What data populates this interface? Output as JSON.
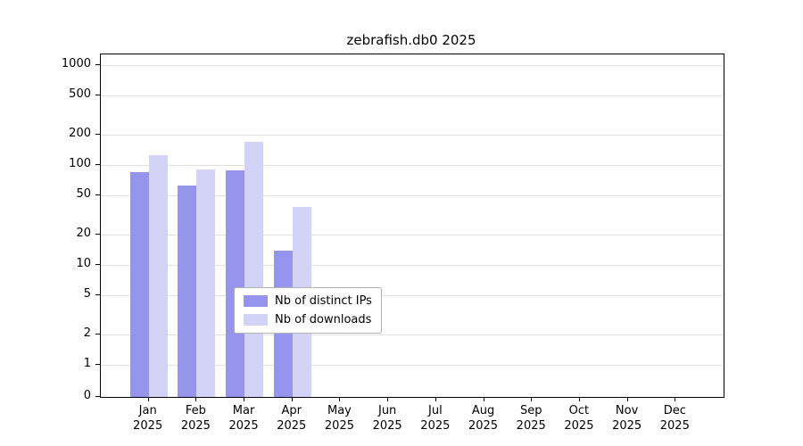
{
  "title": "zebrafish.db0 2025",
  "chart_data": {
    "type": "bar",
    "title": "zebrafish.db0 2025",
    "xlabel": "",
    "ylabel": "",
    "yscale": "symlog",
    "grid": "horizontal",
    "yticks": [
      0,
      1,
      2,
      5,
      10,
      20,
      50,
      100,
      200,
      500,
      1000
    ],
    "ylim": [
      0,
      1300
    ],
    "legend_position": "lower center-left inside plot",
    "categories": [
      {
        "month": "Jan",
        "year": "2025"
      },
      {
        "month": "Feb",
        "year": "2025"
      },
      {
        "month": "Mar",
        "year": "2025"
      },
      {
        "month": "Apr",
        "year": "2025"
      },
      {
        "month": "May",
        "year": "2025"
      },
      {
        "month": "Jun",
        "year": "2025"
      },
      {
        "month": "Jul",
        "year": "2025"
      },
      {
        "month": "Aug",
        "year": "2025"
      },
      {
        "month": "Sep",
        "year": "2025"
      },
      {
        "month": "Oct",
        "year": "2025"
      },
      {
        "month": "Nov",
        "year": "2025"
      },
      {
        "month": "Dec",
        "year": "2025"
      }
    ],
    "series": [
      {
        "name": "Nb of distinct IPs",
        "color": "#9595ee",
        "values": [
          85,
          62,
          88,
          14,
          0,
          0,
          0,
          0,
          0,
          0,
          0,
          0
        ]
      },
      {
        "name": "Nb of downloads",
        "color": "#d3d3f8",
        "values": [
          125,
          90,
          170,
          38,
          0,
          0,
          0,
          0,
          0,
          0,
          0,
          0
        ]
      }
    ]
  },
  "colors": {
    "grid": "#e0e0e0",
    "axis": "#000000",
    "background": "#ffffff"
  }
}
